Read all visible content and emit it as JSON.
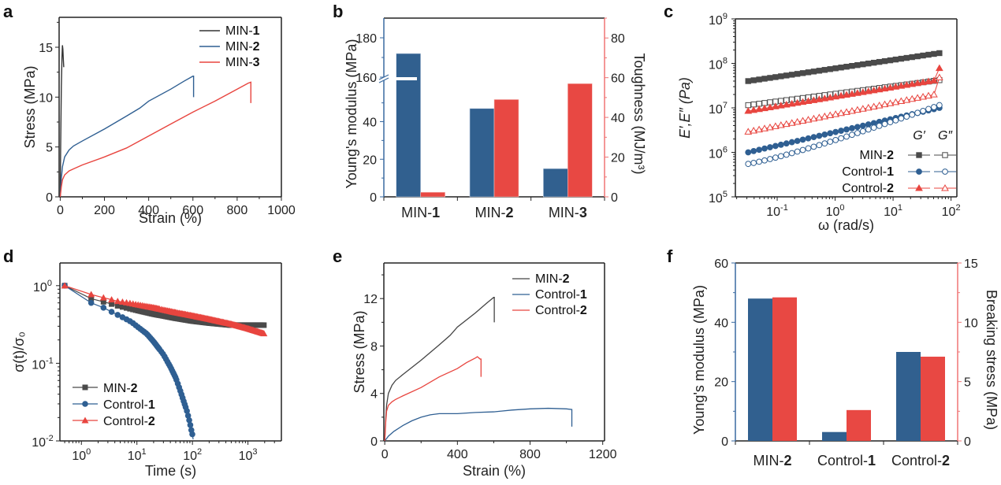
{
  "colors": {
    "black": "#333333",
    "blue": "#2f5f92",
    "red": "#e8453f",
    "blue_bar": "#31608f",
    "red_bar": "#e84843",
    "blue_axis": "#3a6aa0",
    "red_axis": "#f07575"
  },
  "chart_data": [
    {
      "panel": "a",
      "type": "line",
      "xlabel": "Strain (%)",
      "ylabel": "Stress (MPa)",
      "xlim": [
        -5,
        1000
      ],
      "ylim": [
        0,
        18
      ],
      "xticks": [
        "0",
        "200",
        "400",
        "600",
        "800",
        "1000"
      ],
      "xtick_values": [
        0,
        200,
        400,
        600,
        800,
        1000
      ],
      "yticks": [
        "0",
        "5",
        "10",
        "15"
      ],
      "ytick_values": [
        0,
        5,
        10,
        15
      ],
      "legend_position": "top-right",
      "series": [
        {
          "name": "MIN-",
          "name_bold": "1",
          "color": "#333333",
          "x": [
            0,
            2,
            5,
            8,
            10,
            12,
            14,
            16
          ],
          "y": [
            0,
            5,
            11,
            14,
            15.2,
            14.8,
            13.8,
            13.0
          ]
        },
        {
          "name": "MIN-",
          "name_bold": "2",
          "color": "#2f5f92",
          "x": [
            0,
            5,
            10,
            20,
            40,
            60,
            100,
            200,
            300,
            360,
            400,
            500,
            560,
            600,
            603,
            603
          ],
          "y": [
            0,
            1.8,
            3.0,
            4.0,
            4.7,
            5.1,
            5.6,
            6.8,
            8.1,
            8.9,
            9.6,
            10.8,
            11.6,
            12.1,
            12.1,
            10.0
          ]
        },
        {
          "name": "MIN-",
          "name_bold": "3",
          "color": "#e8453f",
          "x": [
            0,
            5,
            10,
            20,
            40,
            60,
            100,
            200,
            300,
            400,
            500,
            600,
            700,
            800,
            850,
            862,
            862
          ],
          "y": [
            0,
            1.0,
            1.7,
            2.2,
            2.6,
            2.8,
            3.2,
            4.0,
            4.9,
            6.1,
            7.3,
            8.5,
            9.6,
            10.8,
            11.4,
            11.5,
            9.4
          ]
        }
      ]
    },
    {
      "panel": "b",
      "type": "bar",
      "categories": [
        "MIN-",
        "MIN-",
        "MIN-"
      ],
      "categories_bold": [
        "1",
        "2",
        "3"
      ],
      "ylabel_left": "Young's modulus (MPa)",
      "ylabel_right": "Toughness (MJ/m³)",
      "ylim_right": [
        0,
        90
      ],
      "left_axis_break": {
        "lower": [
          0,
          62
        ],
        "upper": [
          160,
          190
        ]
      },
      "yticks_left": [
        "0",
        "20",
        "40",
        "160",
        "180"
      ],
      "ytick_values_left": [
        0,
        20,
        40,
        160,
        180
      ],
      "yticks_right": [
        "0",
        "20",
        "40",
        "60",
        "80"
      ],
      "ytick_values_right": [
        0,
        20,
        40,
        60,
        80
      ],
      "series": [
        {
          "name": "Young's modulus",
          "axis": "left",
          "color": "#31608f",
          "values": [
            172,
            47,
            15
          ]
        },
        {
          "name": "Toughness",
          "axis": "right",
          "color": "#e84843",
          "values": [
            2.3,
            49,
            57
          ]
        }
      ]
    },
    {
      "panel": "c",
      "type": "scatter",
      "xscale": "log",
      "yscale": "log",
      "xlabel": "ω (rad/s)",
      "ylabel": "E′,E″ (Pa)",
      "xlim": [
        0.019,
        126
      ],
      "ylim": [
        100000.0,
        1000000000.0
      ],
      "xticks": [
        "10",
        "10",
        "10",
        "10"
      ],
      "xtick_exp": [
        "-1",
        "0",
        "1",
        "2"
      ],
      "xtick_values": [
        0.1,
        1,
        10,
        100
      ],
      "yticks": [
        "10",
        "10",
        "10",
        "10",
        "10"
      ],
      "ytick_exp": [
        "5",
        "6",
        "7",
        "8",
        "9"
      ],
      "ytick_values": [
        100000.0,
        1000000.0,
        10000000.0,
        100000000.0,
        1000000000.0
      ],
      "legend_header": [
        "G′",
        "G″"
      ],
      "legend_position": "bottom-right",
      "series": [
        {
          "name": "MIN-",
          "name_bold": "2",
          "kind": "G'",
          "marker": "square-filled",
          "color": "#4a4a4a",
          "start": 40000000.0,
          "end": 170000000.0,
          "tail": null
        },
        {
          "name": "MIN-",
          "name_bold": "2",
          "kind": "G''",
          "marker": "square-open",
          "color": "#4a4a4a",
          "start": 11500000.0,
          "end": 42000000.0,
          "tail": null
        },
        {
          "name": "Control-",
          "name_bold": "1",
          "kind": "G'",
          "marker": "circle-filled",
          "color": "#2f5f92",
          "start": 1000000.0,
          "end": 10000000.0,
          "tail": null
        },
        {
          "name": "Control-",
          "name_bold": "1",
          "kind": "G''",
          "marker": "circle-open",
          "color": "#2f5f92",
          "start": 550000.0,
          "end": 11500000.0,
          "tail": null
        },
        {
          "name": "Control-",
          "name_bold": "2",
          "kind": "G'",
          "marker": "triangle-filled",
          "color": "#e8453f",
          "start": 8500000.0,
          "end": 43000000.0,
          "tail": 78000000.0
        },
        {
          "name": "Control-",
          "name_bold": "2",
          "kind": "G''",
          "marker": "triangle-open",
          "color": "#e8453f",
          "start": 2900000.0,
          "end": 21000000.0,
          "tail": 48000000.0
        }
      ],
      "omega_range": [
        0.0316,
        63
      ]
    },
    {
      "panel": "d",
      "type": "scatter",
      "xscale": "log",
      "yscale": "log",
      "xlabel": "Time (s)",
      "ylabel": "σ(t)/σ₀",
      "xlim": [
        0.41,
        4000
      ],
      "ylim": [
        0.01,
        1.96
      ],
      "xticks": [
        "10",
        "10",
        "10",
        "10"
      ],
      "xtick_exp": [
        "0",
        "1",
        "2",
        "3"
      ],
      "xtick_values": [
        1,
        10,
        100,
        1000
      ],
      "yticks": [
        "10",
        "10",
        "10"
      ],
      "ytick_exp": [
        "-2",
        "-1",
        "0"
      ],
      "ytick_values": [
        0.01,
        0.1,
        1
      ],
      "legend_position": "bottom-left",
      "series": [
        {
          "name": "MIN-",
          "name_bold": "2",
          "marker": "square",
          "color": "#4a4a4a",
          "t": [
            0.5,
            1.5,
            2.5,
            3.5,
            4.5,
            7,
            10,
            20,
            50,
            100,
            200,
            500,
            1000,
            2000
          ],
          "y": [
            1.0,
            0.68,
            0.62,
            0.58,
            0.55,
            0.51,
            0.48,
            0.43,
            0.38,
            0.35,
            0.33,
            0.31,
            0.31,
            0.31
          ]
        },
        {
          "name": "Control-",
          "name_bold": "1",
          "marker": "circle",
          "color": "#2f5f92",
          "t": [
            0.5,
            1.5,
            2.5,
            3.5,
            4.5,
            6,
            8,
            10,
            15,
            20,
            30,
            40,
            50,
            60,
            70,
            80,
            90,
            95,
            100,
            103
          ],
          "y": [
            1.0,
            0.6,
            0.52,
            0.46,
            0.42,
            0.38,
            0.34,
            0.3,
            0.24,
            0.19,
            0.13,
            0.09,
            0.065,
            0.045,
            0.032,
            0.024,
            0.017,
            0.014,
            0.012,
            0.0105
          ]
        },
        {
          "name": "Control-",
          "name_bold": "2",
          "marker": "triangle",
          "color": "#e8453f",
          "t": [
            0.5,
            1.5,
            2.5,
            3.5,
            4.5,
            7,
            10,
            20,
            50,
            100,
            200,
            500,
            1000,
            2000
          ],
          "y": [
            1.0,
            0.77,
            0.7,
            0.66,
            0.63,
            0.6,
            0.57,
            0.52,
            0.45,
            0.41,
            0.37,
            0.32,
            0.28,
            0.24
          ]
        }
      ]
    },
    {
      "panel": "e",
      "type": "line",
      "xlabel": "Strain (%)",
      "ylabel": "Stress (MPa)",
      "xlim": [
        -5,
        1210
      ],
      "ylim": [
        0,
        15
      ],
      "xticks": [
        "0",
        "400",
        "800",
        "1200"
      ],
      "xtick_values": [
        0,
        400,
        800,
        1200
      ],
      "yticks": [
        "0",
        "4",
        "8",
        "12"
      ],
      "ytick_values": [
        0,
        4,
        8,
        12
      ],
      "legend_position": "top-right",
      "series": [
        {
          "name": "MIN-",
          "name_bold": "2",
          "color": "#444444",
          "x": [
            0,
            5,
            10,
            20,
            40,
            60,
            100,
            200,
            300,
            360,
            400,
            500,
            560,
            600,
            603,
            603
          ],
          "y": [
            0,
            1.8,
            3.0,
            4.0,
            4.7,
            5.1,
            5.6,
            6.8,
            8.1,
            8.9,
            9.6,
            10.8,
            11.6,
            12.1,
            12.1,
            10.0
          ]
        },
        {
          "name": "Control-",
          "name_bold": "1",
          "color": "#2f5f92",
          "x": [
            0,
            20,
            50,
            100,
            150,
            200,
            250,
            300,
            350,
            400,
            500,
            600,
            700,
            800,
            900,
            1000,
            1030,
            1030
          ],
          "y": [
            0,
            0.4,
            0.8,
            1.3,
            1.7,
            2.0,
            2.2,
            2.3,
            2.3,
            2.3,
            2.4,
            2.45,
            2.6,
            2.7,
            2.75,
            2.7,
            2.65,
            1.2
          ]
        },
        {
          "name": "Control-",
          "name_bold": "2",
          "color": "#e8453f",
          "x": [
            0,
            5,
            10,
            20,
            40,
            60,
            100,
            200,
            300,
            400,
            450,
            500,
            510,
            525,
            530,
            530
          ],
          "y": [
            0,
            1.5,
            2.5,
            3.0,
            3.3,
            3.5,
            3.8,
            4.5,
            5.4,
            6.1,
            6.6,
            7.0,
            7.1,
            6.9,
            6.9,
            5.4
          ]
        }
      ]
    },
    {
      "panel": "f",
      "type": "bar",
      "categories": [
        "MIN-",
        "Control-",
        "Control-"
      ],
      "categories_bold": [
        "2",
        "1",
        "2"
      ],
      "ylabel_left": "Young's modulus (MPa)",
      "ylabel_right": "Breaking stress (MPa)",
      "ylim_left": [
        0,
        60
      ],
      "ylim_right": [
        0,
        15
      ],
      "yticks_left": [
        "0",
        "20",
        "40",
        "60"
      ],
      "ytick_values_left": [
        0,
        20,
        40,
        60
      ],
      "yticks_right": [
        "0",
        "5",
        "10",
        "15"
      ],
      "ytick_values_right": [
        0,
        5,
        10,
        15
      ],
      "series": [
        {
          "name": "Young's modulus",
          "axis": "left",
          "color": "#31608f",
          "values": [
            48,
            3,
            30
          ]
        },
        {
          "name": "Breaking stress",
          "axis": "right",
          "color": "#e84843",
          "values": [
            12.1,
            2.6,
            7.1
          ]
        }
      ]
    }
  ],
  "panel_labels": [
    "a",
    "b",
    "c",
    "d",
    "e",
    "f"
  ]
}
